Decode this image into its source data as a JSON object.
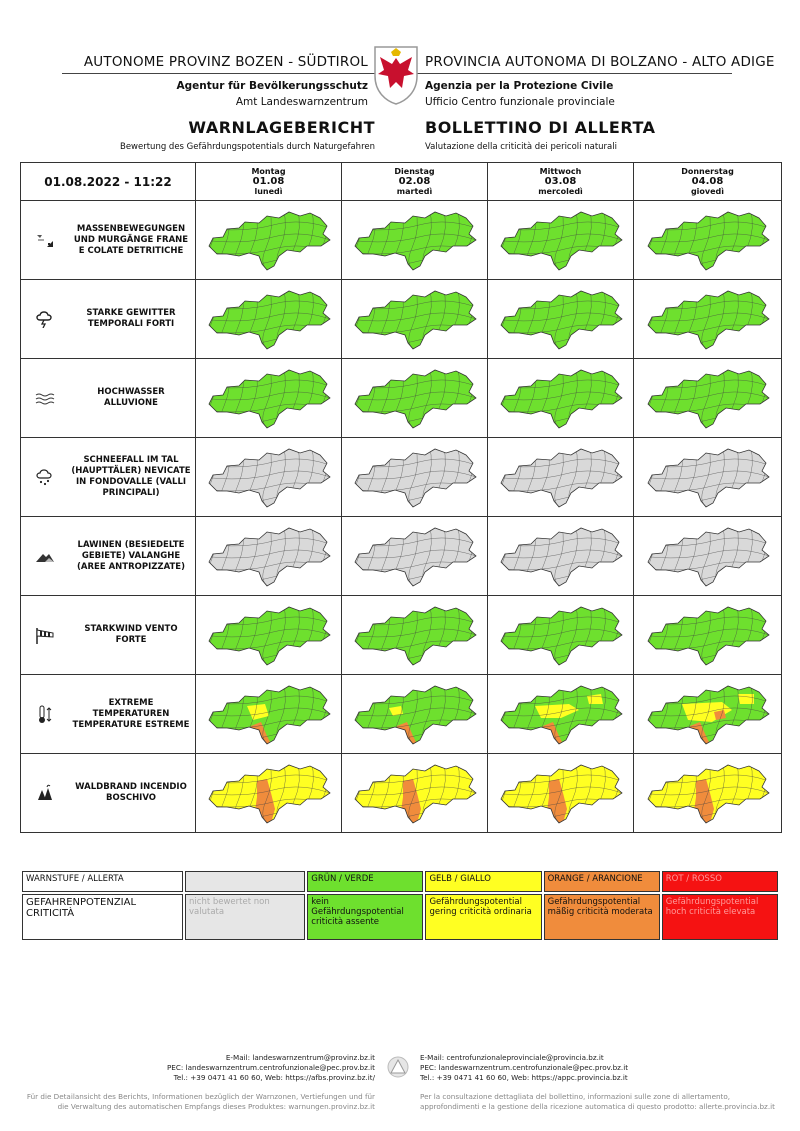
{
  "header": {
    "left_org": "AUTONOME PROVINZ BOZEN - SÜDTIROL",
    "right_org": "PROVINCIA AUTONOMA DI BOLZANO - ALTO ADIGE",
    "left_agency": "Agentur für Bevölkerungsschutz",
    "left_office": "Amt Landeswarnzentrum",
    "right_agency": "Agenzia per la Protezione Civile",
    "right_office": "Ufficio Centro funzionale provinciale",
    "title_de": "WARNLAGEBERICHT",
    "title_it": "BOLLETTINO DI ALLERTA",
    "subtitle_de": "Bewertung des Gefährdungspotentials durch Naturgefahren",
    "subtitle_it": "Valutazione della criticità dei pericoli naturali"
  },
  "issued": "01.08.2022 - 11:22",
  "days": [
    {
      "de": "Montag",
      "date": "01.08",
      "it": "lunedì"
    },
    {
      "de": "Dienstag",
      "date": "02.08",
      "it": "martedì"
    },
    {
      "de": "Mittwoch",
      "date": "03.08",
      "it": "mercoledì"
    },
    {
      "de": "Donnerstag",
      "date": "04.08",
      "it": "giovedì"
    }
  ],
  "colors": {
    "green": "#6ee02e",
    "grey": "#d9d9d9",
    "yellow": "#ffff22",
    "orange": "#f08c3c",
    "red": "#f51212"
  },
  "hazards": [
    {
      "name": "MASSENBEWEGUNGEN UND MURGÄNGE FRANE E COLATE DETRITICHE",
      "icon": "landslide-icon",
      "levels": [
        "green",
        "green",
        "green",
        "green"
      ]
    },
    {
      "name": "STARKE GEWITTER TEMPORALI FORTI",
      "icon": "thunderstorm-icon",
      "levels": [
        "green",
        "green",
        "green",
        "green"
      ]
    },
    {
      "name": "HOCHWASSER ALLUVIONE",
      "icon": "flood-icon",
      "levels": [
        "green",
        "green",
        "green",
        "green"
      ]
    },
    {
      "name": "SCHNEEFALL IM TAL (HAUPTTÄLER) NEVICATE IN FONDOVALLE (VALLI PRINCIPALI)",
      "icon": "snowfall-icon",
      "levels": [
        "grey",
        "grey",
        "grey",
        "grey"
      ]
    },
    {
      "name": "LAWINEN (BESIEDELTE GEBIETE) VALANGHE (AREE ANTROPIZZATE)",
      "icon": "avalanche-icon",
      "levels": [
        "grey",
        "grey",
        "grey",
        "grey"
      ]
    },
    {
      "name": "STARKWIND VENTO FORTE",
      "icon": "windsock-icon",
      "levels": [
        "green",
        "green",
        "green",
        "green"
      ]
    },
    {
      "name": "EXTREME TEMPERATUREN TEMPERATURE ESTREME",
      "icon": "thermometer-icon",
      "levels": [
        "green+yellow+orange",
        "green+yellow+orange",
        "green+yellow+orange",
        "green+yellow+orange"
      ]
    },
    {
      "name": "WALDBRAND INCENDIO BOSCHIVO",
      "icon": "forest-fire-icon",
      "levels": [
        "yellow+orange",
        "yellow+orange",
        "yellow+orange",
        "yellow+orange"
      ]
    }
  ],
  "legend": {
    "label1": "WARNSTUFE / ALLERTA",
    "label2": "GEFAHRENPOTENZIAL CRITICITÀ",
    "levels": [
      {
        "name": "",
        "desc": "nicht bewertet non valutata",
        "color": "#e6e6e6"
      },
      {
        "name": "GRÜN / VERDE",
        "desc": "kein Gefährdungspotential criticità assente",
        "color": "#6ee02e"
      },
      {
        "name": "GELB / GIALLO",
        "desc": "Gefährdungspotential gering criticità ordinaria",
        "color": "#ffff22"
      },
      {
        "name": "ORANGE / ARANCIONE",
        "desc": "Gefährdungspotential mäßig criticità moderata",
        "color": "#f08c3c"
      },
      {
        "name": "ROT / ROSSO",
        "desc": "Gefährdungspotential hoch criticità elevata",
        "color": "#f51212"
      }
    ]
  },
  "footer": {
    "left_email": "E-Mail: landeswarnzentrum@provinz.bz.it",
    "left_pec": "PEC: landeswarnzentrum.centrofunzionale@pec.prov.bz.it",
    "left_web": "Tel.: +39 0471 41 60 60, Web: https://afbs.provinz.bz.it/",
    "right_email": "E-Mail: centrofunzionaleprovinciale@provincia.bz.it",
    "right_pec": "PEC: landeswarnzentrum.centrofunzionale@pec.prov.bz.it",
    "right_web": "Tel.: +39 0471 41 60 60, Web: https://appc.provincia.bz.it",
    "left_note1": "Für die Detailansicht des Berichts, Informationen bezüglich der Warnzonen, Vertiefungen und für",
    "left_note2": "die Verwaltung des automatischen Empfangs dieses Produktes: warnungen.provinz.bz.it",
    "right_note1": "Per la consultazione dettagliata del bollettino, informazioni sulle zone di allertamento,",
    "right_note2": "approfondimenti e la gestione della ricezione automatica di questo prodotto: allerte.provincia.bz.it"
  }
}
